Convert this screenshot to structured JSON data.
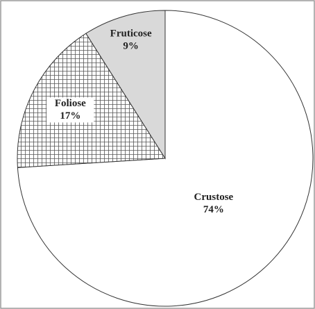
{
  "chart_data": {
    "type": "pie",
    "categories": [
      "Crustose",
      "Foliose",
      "Fruticose"
    ],
    "values": [
      74,
      17,
      9
    ],
    "value_labels": [
      "74%",
      "17%",
      "9%"
    ],
    "colors": [
      "#ffffff",
      "#ffffff",
      "#d9d9d9"
    ],
    "hatch": [
      false,
      true,
      false
    ]
  }
}
